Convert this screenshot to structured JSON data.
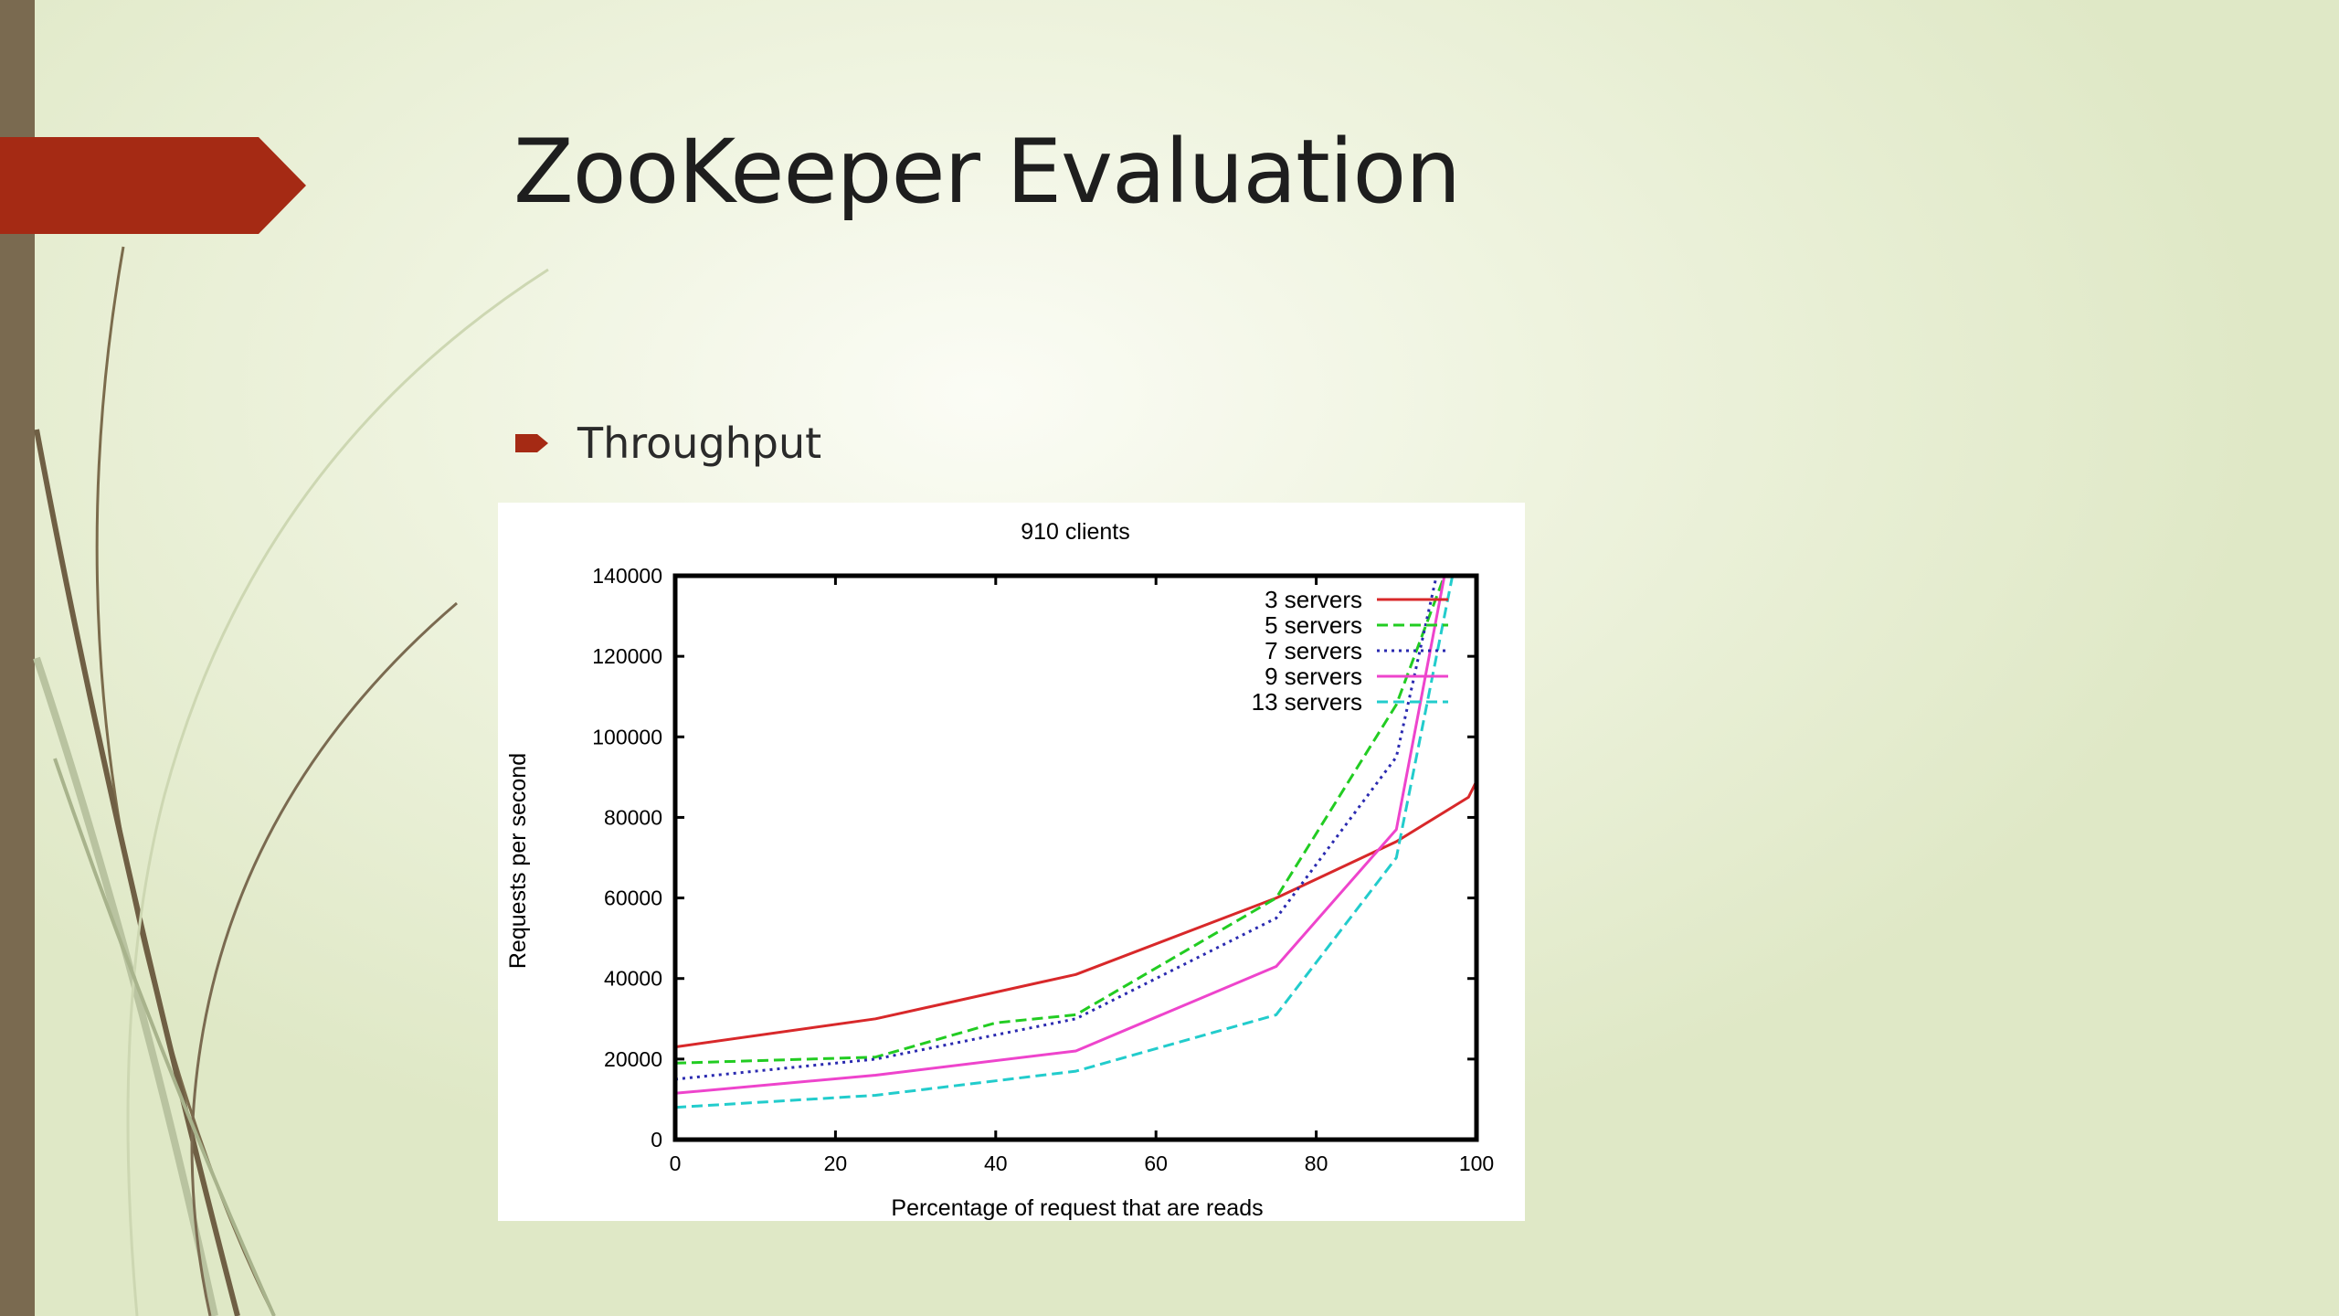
{
  "slide": {
    "title": "ZooKeeper Evaluation",
    "bullet": "Throughput",
    "accent_color": "#a52a14",
    "bar_color": "#7a6a50",
    "bullet_icon": "arrow-bullet-icon"
  },
  "chart_data": {
    "type": "line",
    "title": "910 clients",
    "xlabel": "Percentage of request that are  reads",
    "ylabel": "Requests per second",
    "xlim": [
      0,
      100
    ],
    "ylim": [
      0,
      140000
    ],
    "x_ticks": [
      0,
      20,
      40,
      60,
      80,
      100
    ],
    "y_ticks": [
      0,
      20000,
      40000,
      60000,
      80000,
      100000,
      120000,
      140000
    ],
    "legend_position": "top-right",
    "grid": false,
    "series": [
      {
        "name": "3 servers",
        "color": "#d8282a",
        "dash": "solid",
        "points": [
          [
            0,
            23000
          ],
          [
            25,
            30000
          ],
          [
            50,
            41000
          ],
          [
            75,
            60000
          ],
          [
            90,
            74000
          ],
          [
            99,
            85000
          ],
          [
            100,
            89000
          ]
        ]
      },
      {
        "name": "5 servers",
        "color": "#22cc22",
        "dash": "dashed",
        "points": [
          [
            0,
            19000
          ],
          [
            25,
            20500
          ],
          [
            40,
            29000
          ],
          [
            50,
            31000
          ],
          [
            75,
            60000
          ],
          [
            90,
            108000
          ],
          [
            96,
            140000
          ]
        ]
      },
      {
        "name": "7 servers",
        "color": "#2a2ab0",
        "dash": "dotted",
        "points": [
          [
            0,
            15000
          ],
          [
            25,
            20000
          ],
          [
            50,
            30000
          ],
          [
            75,
            55000
          ],
          [
            90,
            95000
          ],
          [
            95,
            140000
          ]
        ]
      },
      {
        "name": "9 servers",
        "color": "#ee44cc",
        "dash": "solid",
        "points": [
          [
            0,
            11500
          ],
          [
            25,
            16000
          ],
          [
            50,
            22000
          ],
          [
            75,
            43000
          ],
          [
            90,
            77000
          ],
          [
            96,
            140000
          ]
        ]
      },
      {
        "name": "13 servers",
        "color": "#22cccc",
        "dash": "dashed",
        "points": [
          [
            0,
            8000
          ],
          [
            25,
            11000
          ],
          [
            50,
            17000
          ],
          [
            75,
            31000
          ],
          [
            90,
            70000
          ],
          [
            97,
            140000
          ]
        ]
      }
    ]
  }
}
